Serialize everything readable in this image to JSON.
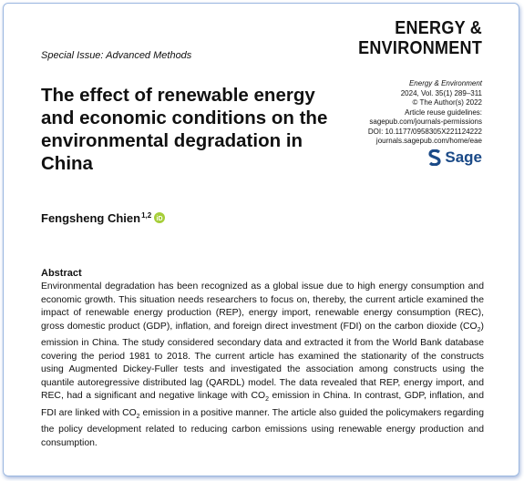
{
  "header": {
    "section": "Special Issue: Advanced Methods",
    "journal_logo": [
      "ENERGY &",
      "ENVIRONMENT"
    ],
    "meta": [
      "Energy & Environment",
      "2024, Vol. 35(1) 289–311",
      "© The Author(s) 2022",
      "Article reuse guidelines:",
      "sagepub.com/journals-permissions",
      "DOI: 10.1177/0958305X221124222",
      "journals.sagepub.com/home/eae"
    ],
    "publisher": "Sage"
  },
  "title": "The effect of renewable energy and economic conditions on the environmental degradation in China",
  "author": {
    "name": "Fengsheng Chien",
    "affiliations": "1,2"
  },
  "abstract": {
    "heading": "Abstract",
    "parts": [
      "Environmental degradation has been recognized as a global issue due to high energy consumption and economic growth. This situation needs researchers to focus on, thereby, the current article examined the impact of renewable energy production (REP), energy import, renewable energy consumption (REC), gross domestic product (GDP), inflation, and foreign direct investment (FDI) on the carbon dioxide (CO",
      "2",
      ") emission in China. The study considered secondary data and extracted it from the World Bank database covering the period 1981 to 2018. The current article has examined the stationarity of the constructs using Augmented Dickey-Fuller tests and investigated the association among constructs using the quantile autoregressive distributed lag (QARDL) model. The data revealed that REP, energy import, and REC, had a significant and negative linkage with CO",
      "2",
      " emission in China. In contrast, GDP, inflation, and FDI are linked with CO",
      "2",
      " emission in a positive manner. The article also guided the policymakers regarding the policy development related to reducing carbon emissions using renewable energy production and consumption."
    ]
  }
}
